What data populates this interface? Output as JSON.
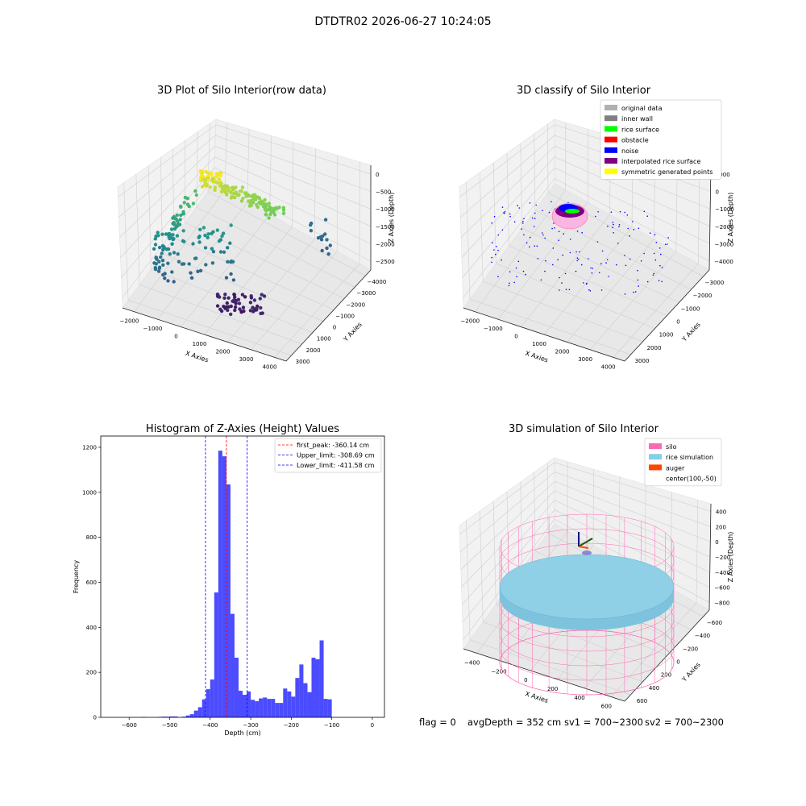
{
  "figure": {
    "suptitle": "DTDTR02 2026-06-27 10:24:05",
    "footer": {
      "flag": "flag = 0",
      "avg_depth": "avgDepth = 352 cm",
      "sv1": "sv1 = 700~2300",
      "sv2": "sv2 = 700~2300"
    }
  },
  "chart_data": [
    {
      "id": "raw3d",
      "type": "scatter",
      "title": "3D Plot of Silo Interior(row data)",
      "xlabel": "X Axies",
      "ylabel": "Y Axies",
      "zlabel": "Z Axies (Depth)",
      "x_ticks": [
        "−2000",
        "−1000",
        "0",
        "1000",
        "2000",
        "3000",
        "4000"
      ],
      "y_ticks": [
        "−4000",
        "−3000",
        "−2000",
        "−1000",
        "0",
        "1000",
        "2000",
        "3000"
      ],
      "z_ticks": [
        "0",
        "−500",
        "−1000",
        "−1500",
        "−2000",
        "−2500"
      ],
      "colormap": [
        "#440154",
        "#3b528b",
        "#21908d",
        "#5dc963",
        "#fde725"
      ]
    },
    {
      "id": "classify3d",
      "type": "scatter",
      "title": "3D classify of Silo Interior",
      "xlabel": "X Axies",
      "ylabel": "Y Axies",
      "zlabel": "Z Axies (Depth)",
      "x_ticks": [
        "−2000",
        "−1000",
        "0",
        "1000",
        "2000",
        "3000",
        "4000"
      ],
      "y_ticks": [
        "−3000",
        "−2000",
        "−1000",
        "0",
        "1000",
        "2000",
        "3000"
      ],
      "z_ticks": [
        "1000",
        "0",
        "−1000",
        "−2000",
        "−3000",
        "−4000"
      ],
      "legend": [
        {
          "label": "original data",
          "color": "#b0b0b0"
        },
        {
          "label": "inner wall",
          "color": "#808080"
        },
        {
          "label": "rice surface",
          "color": "#00ff00"
        },
        {
          "label": "obstacle",
          "color": "#ff0000"
        },
        {
          "label": "noise",
          "color": "#0000ff"
        },
        {
          "label": "interpolated rice surface",
          "color": "#800080"
        },
        {
          "label": "symmetric generated points",
          "color": "#ffff00"
        }
      ]
    },
    {
      "id": "histogram",
      "type": "bar",
      "title": "Histogram of Z-Axies (Height) Values",
      "xlabel": "Depth (cm)",
      "ylabel": "Frequency",
      "xlim": [
        -670,
        30
      ],
      "ylim": [
        0,
        1250
      ],
      "x_ticks": [
        {
          "value": -600,
          "label": "−600"
        },
        {
          "value": -500,
          "label": "−500"
        },
        {
          "value": -400,
          "label": "−400"
        },
        {
          "value": -300,
          "label": "−300"
        },
        {
          "value": -200,
          "label": "−200"
        },
        {
          "value": -100,
          "label": "−100"
        },
        {
          "value": 0,
          "label": "0"
        }
      ],
      "y_ticks": [
        {
          "value": 0,
          "label": "0"
        },
        {
          "value": 200,
          "label": "200"
        },
        {
          "value": 400,
          "label": "400"
        },
        {
          "value": 600,
          "label": "600"
        },
        {
          "value": 800,
          "label": "800"
        },
        {
          "value": 1000,
          "label": "1000"
        },
        {
          "value": 1200,
          "label": "1200"
        }
      ],
      "bar_color": "#4b4bff",
      "bins": [
        {
          "x0": -570,
          "x1": -560,
          "v": 2
        },
        {
          "x0": -530,
          "x1": -520,
          "v": 2
        },
        {
          "x0": -520,
          "x1": -510,
          "v": 3
        },
        {
          "x0": -510,
          "x1": -500,
          "v": 3
        },
        {
          "x0": -500,
          "x1": -490,
          "v": 4
        },
        {
          "x0": -490,
          "x1": -480,
          "v": 4
        },
        {
          "x0": -470,
          "x1": -460,
          "v": 3
        },
        {
          "x0": -460,
          "x1": -450,
          "v": 8
        },
        {
          "x0": -450,
          "x1": -440,
          "v": 14
        },
        {
          "x0": -440,
          "x1": -430,
          "v": 30
        },
        {
          "x0": -430,
          "x1": -420,
          "v": 45
        },
        {
          "x0": -420,
          "x1": -410,
          "v": 80
        },
        {
          "x0": -410,
          "x1": -400,
          "v": 125
        },
        {
          "x0": -400,
          "x1": -390,
          "v": 168
        },
        {
          "x0": -390,
          "x1": -380,
          "v": 555
        },
        {
          "x0": -380,
          "x1": -370,
          "v": 1185
        },
        {
          "x0": -370,
          "x1": -360,
          "v": 1160
        },
        {
          "x0": -360,
          "x1": -350,
          "v": 1035
        },
        {
          "x0": -350,
          "x1": -340,
          "v": 460
        },
        {
          "x0": -340,
          "x1": -330,
          "v": 265
        },
        {
          "x0": -330,
          "x1": -320,
          "v": 118
        },
        {
          "x0": -320,
          "x1": -310,
          "v": 100
        },
        {
          "x0": -310,
          "x1": -300,
          "v": 115
        },
        {
          "x0": -300,
          "x1": -290,
          "v": 78
        },
        {
          "x0": -290,
          "x1": -280,
          "v": 72
        },
        {
          "x0": -280,
          "x1": -270,
          "v": 84
        },
        {
          "x0": -270,
          "x1": -260,
          "v": 88
        },
        {
          "x0": -260,
          "x1": -250,
          "v": 82
        },
        {
          "x0": -250,
          "x1": -240,
          "v": 82
        },
        {
          "x0": -240,
          "x1": -230,
          "v": 64
        },
        {
          "x0": -230,
          "x1": -220,
          "v": 64
        },
        {
          "x0": -220,
          "x1": -210,
          "v": 128
        },
        {
          "x0": -210,
          "x1": -200,
          "v": 115
        },
        {
          "x0": -200,
          "x1": -190,
          "v": 92
        },
        {
          "x0": -190,
          "x1": -180,
          "v": 175
        },
        {
          "x0": -180,
          "x1": -170,
          "v": 235
        },
        {
          "x0": -170,
          "x1": -160,
          "v": 152
        },
        {
          "x0": -160,
          "x1": -150,
          "v": 112
        },
        {
          "x0": -150,
          "x1": -140,
          "v": 265
        },
        {
          "x0": -140,
          "x1": -130,
          "v": 258
        },
        {
          "x0": -130,
          "x1": -120,
          "v": 342
        },
        {
          "x0": -120,
          "x1": -110,
          "v": 82
        },
        {
          "x0": -110,
          "x1": -100,
          "v": 80
        }
      ],
      "vlines": [
        {
          "x": -360.14,
          "color": "#ff0000",
          "label": "first_peak: -360.14 cm"
        },
        {
          "x": -308.69,
          "color": "#0000ff",
          "label": "Upper_limit: -308.69 cm"
        },
        {
          "x": -411.58,
          "color": "#0000ff",
          "label": "Lower_limit: -411.58 cm"
        }
      ]
    },
    {
      "id": "sim3d",
      "type": "scatter",
      "title": "3D simulation of Silo Interior",
      "xlabel": "X Axies",
      "ylabel": "Y Axies",
      "zlabel": "Z Axies (Depth)",
      "x_ticks": [
        "−400",
        "−200",
        "0",
        "200",
        "400",
        "600"
      ],
      "y_ticks": [
        "−600",
        "−400",
        "−200",
        "0",
        "200",
        "400",
        "600"
      ],
      "z_ticks": [
        "400",
        "200",
        "0",
        "−200",
        "−400",
        "−600",
        "−800"
      ],
      "legend": [
        {
          "label": "silo",
          "color": "#ff69b4"
        },
        {
          "label": "rice simulation",
          "color": "#87ceeb"
        },
        {
          "label": "auger",
          "color": "#ff4500"
        },
        {
          "label": "center(100,-50)",
          "color": ""
        }
      ]
    }
  ]
}
